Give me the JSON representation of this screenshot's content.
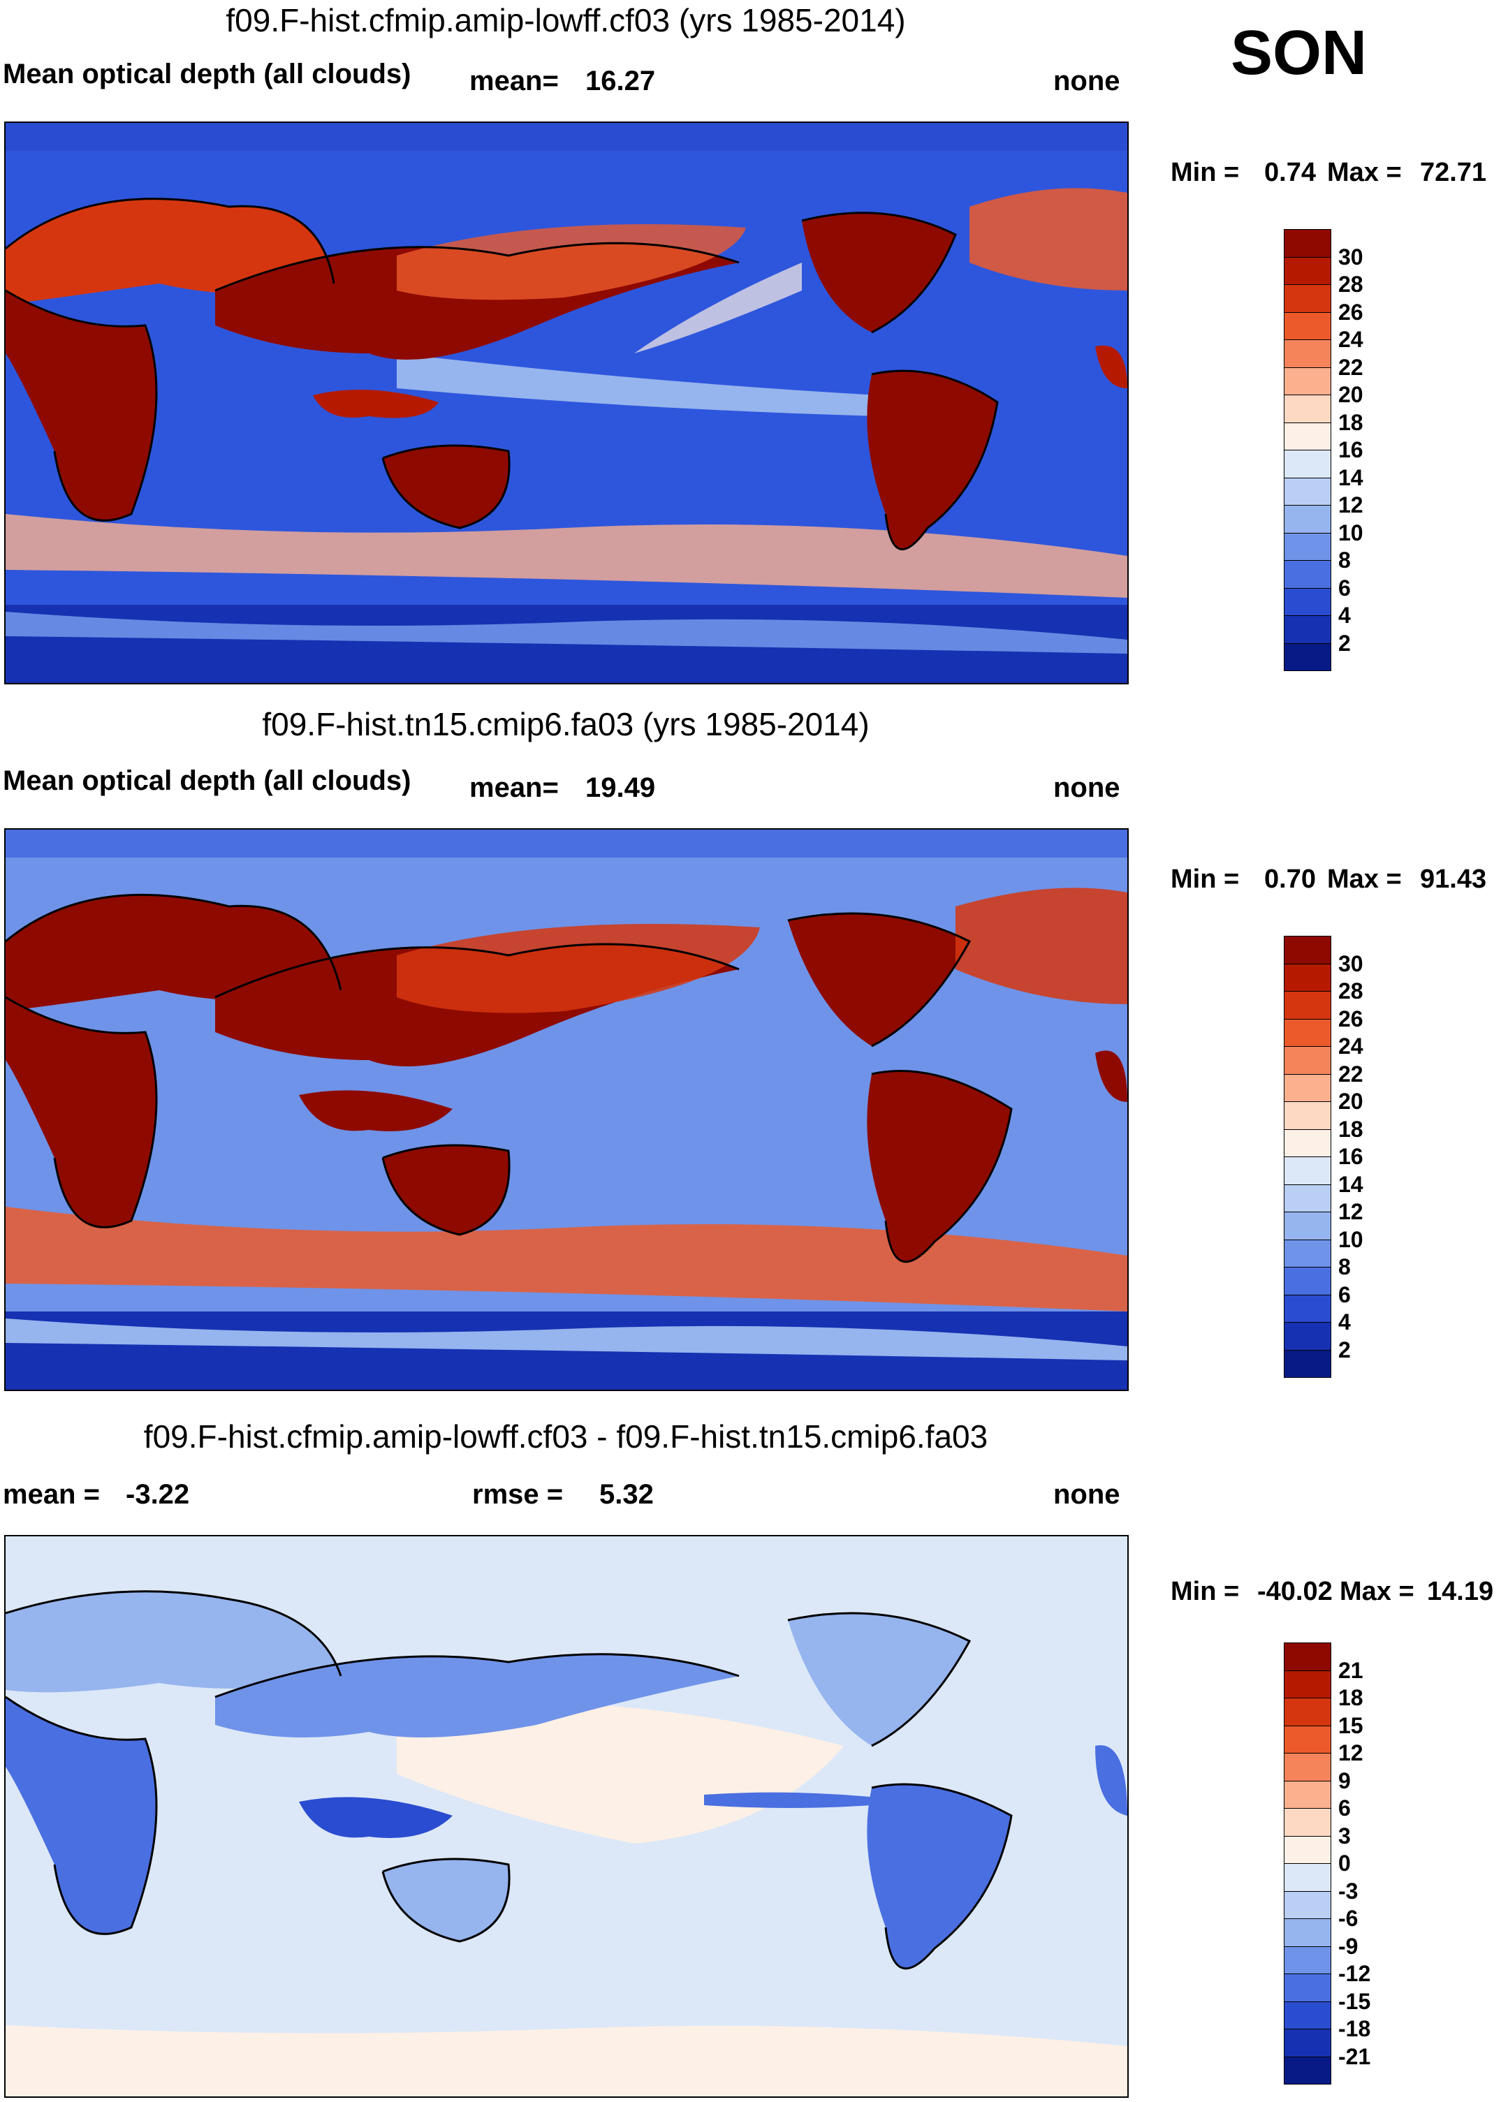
{
  "season": "SON",
  "panels": [
    {
      "title": "f09.F-hist.cfmip.amip-lowff.cf03 (yrs 1985-2014)",
      "left_label": "Mean optical depth (all clouds)",
      "stat_label": "mean=",
      "stat_value": "16.27",
      "right_label": "none",
      "min_label": "Min =",
      "min_value": "0.74",
      "max_label": "Max =",
      "max_value": "72.71",
      "colorbar": {
        "ticks": [
          "30",
          "28",
          "26",
          "24",
          "22",
          "20",
          "18",
          "16",
          "14",
          "12",
          "10",
          "8",
          "6",
          "4",
          "2"
        ],
        "colors": [
          "#8e0a00",
          "#b51a00",
          "#d6360f",
          "#ec5a2c",
          "#f6845a",
          "#fbb08e",
          "#fdd9c4",
          "#fdf0e6",
          "#dce8f8",
          "#b9cff3",
          "#96b4ee",
          "#6f93e8",
          "#4a6fe0",
          "#2a4cd0",
          "#1632b2",
          "#081a86"
        ]
      }
    },
    {
      "title": "f09.F-hist.tn15.cmip6.fa03 (yrs 1985-2014)",
      "left_label": "Mean optical depth (all clouds)",
      "stat_label": "mean=",
      "stat_value": "19.49",
      "right_label": "none",
      "min_label": "Min =",
      "min_value": "0.70",
      "max_label": "Max =",
      "max_value": "91.43",
      "colorbar": {
        "ticks": [
          "30",
          "28",
          "26",
          "24",
          "22",
          "20",
          "18",
          "16",
          "14",
          "12",
          "10",
          "8",
          "6",
          "4",
          "2"
        ],
        "colors": [
          "#8e0a00",
          "#b51a00",
          "#d6360f",
          "#ec5a2c",
          "#f6845a",
          "#fbb08e",
          "#fdd9c4",
          "#fdf0e6",
          "#dce8f8",
          "#b9cff3",
          "#96b4ee",
          "#6f93e8",
          "#4a6fe0",
          "#2a4cd0",
          "#1632b2",
          "#081a86"
        ]
      }
    },
    {
      "title": "f09.F-hist.cfmip.amip-lowff.cf03 - f09.F-hist.tn15.cmip6.fa03",
      "left_label": "mean =",
      "left_value": "-3.22",
      "stat_label": "rmse =",
      "stat_value": "5.32",
      "right_label": "none",
      "min_label": "Min =",
      "min_value": "-40.02",
      "max_label": "Max =",
      "max_value": "14.19",
      "colorbar": {
        "ticks": [
          "21",
          "18",
          "15",
          "12",
          "9",
          "6",
          "3",
          "0",
          "-3",
          "-6",
          "-9",
          "-12",
          "-15",
          "-18",
          "-21"
        ],
        "colors": [
          "#8e0a00",
          "#b51a00",
          "#d6360f",
          "#ec5a2c",
          "#f6845a",
          "#fbb08e",
          "#fdd9c4",
          "#fdf0e6",
          "#dce8f8",
          "#b9cff3",
          "#96b4ee",
          "#6f93e8",
          "#4a6fe0",
          "#2a4cd0",
          "#1632b2",
          "#081a86"
        ]
      }
    }
  ]
}
